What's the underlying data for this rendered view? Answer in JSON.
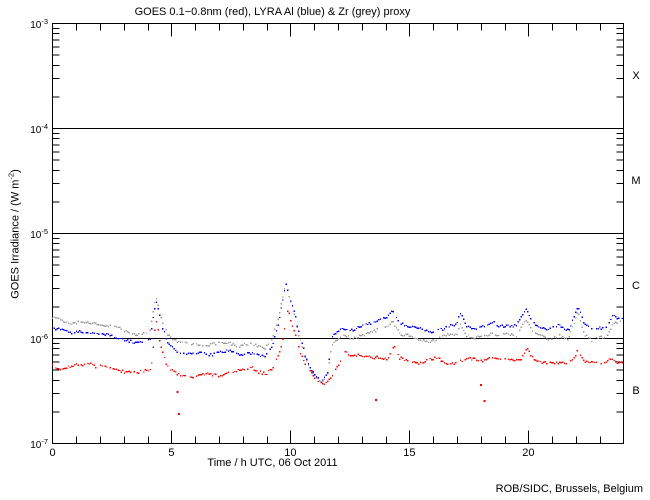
{
  "page": {
    "credit": "ROB/SIDC, Brussels, Belgium"
  },
  "chart_data": {
    "type": "line",
    "title": "GOES 0.1−0.8nm (red), LYRA Al (blue) & Zr (grey) proxy",
    "xlabel": "Time / h UTC, 06 Oct 2011",
    "ylabel": "GOES Irradiance / (W m-2)",
    "ylabel_parts": {
      "pre": "GOES Irradiance / (W m",
      "sup": "-2",
      "post": ")"
    },
    "xlim": [
      0,
      24
    ],
    "ylim": [
      1e-07,
      0.001
    ],
    "x_major_ticks": [
      0,
      5,
      10,
      15,
      20
    ],
    "x_minor_step": 1,
    "y_decade_exponents": [
      -3,
      -4,
      -5,
      -6,
      -7
    ],
    "threshold_lines": [
      0.0001,
      1e-05,
      1e-06
    ],
    "flare_class_labels": [
      {
        "label": "X",
        "band": [
          0.0001,
          0.001
        ]
      },
      {
        "label": "M",
        "band": [
          1e-05,
          0.0001
        ]
      },
      {
        "label": "C",
        "band": [
          1e-06,
          1e-05
        ]
      },
      {
        "label": "B",
        "band": [
          1e-07,
          1e-06
        ]
      }
    ],
    "colors": {
      "goes": "#ff0000",
      "lyra_al": "#0000ff",
      "lyra_zr": "#9a9a9a",
      "axis": "#000000",
      "background": "#ffffff"
    },
    "series": [
      {
        "name": "GOES 0.1-0.8nm",
        "color": "#ff0000",
        "points": [
          [
            0,
            5.5e-07
          ],
          [
            0.3,
            5.2e-07
          ],
          [
            0.8,
            5.4e-07
          ],
          [
            1.3,
            5.6e-07
          ],
          [
            1.6,
            5.9e-07
          ],
          [
            1.8,
            5.4e-07
          ],
          [
            2.1,
            5.6e-07
          ],
          [
            2.4,
            5.1e-07
          ],
          [
            2.8,
            5e-07
          ],
          [
            3.2,
            4.8e-07
          ],
          [
            3.6,
            4.7e-07
          ],
          [
            4.0,
            4.9e-07
          ],
          [
            4.15,
            5.2e-07
          ],
          [
            4.35,
            1.55e-06
          ],
          [
            4.55,
            8.6e-07
          ],
          [
            4.8,
            5.5e-07
          ],
          [
            5.1,
            4.7e-07
          ],
          [
            5.5,
            4.4e-07
          ],
          [
            6.0,
            4.4e-07
          ],
          [
            6.5,
            4.5e-07
          ],
          [
            7.0,
            4.5e-07
          ],
          [
            7.5,
            4.7e-07
          ],
          [
            8.0,
            5e-07
          ],
          [
            8.4,
            5.3e-07
          ],
          [
            8.7,
            4.8e-07
          ],
          [
            9.0,
            4.6e-07
          ],
          [
            9.3,
            5.3e-07
          ],
          [
            9.6,
            8e-07
          ],
          [
            9.9,
            1.9e-06
          ],
          [
            10.15,
            1.2e-06
          ],
          [
            10.4,
            7.4e-07
          ],
          [
            10.7,
            5.3e-07
          ],
          [
            11.0,
            4.3e-07
          ],
          [
            11.4,
            3.7e-07
          ],
          [
            11.7,
            4.2e-07
          ],
          [
            12.0,
            5.4e-07
          ],
          [
            12.3,
            7.4e-07
          ],
          [
            12.6,
            7e-07
          ],
          [
            13.0,
            6.9e-07
          ],
          [
            13.4,
            6.5e-07
          ],
          [
            13.8,
            6.7e-07
          ],
          [
            14.1,
            6.4e-07
          ],
          [
            14.35,
            8.5e-07
          ],
          [
            14.6,
            6.4e-07
          ],
          [
            15.0,
            6.1e-07
          ],
          [
            15.4,
            5.9e-07
          ],
          [
            15.8,
            6.2e-07
          ],
          [
            16.2,
            6.4e-07
          ],
          [
            16.6,
            5.9e-07
          ],
          [
            17.0,
            5.8e-07
          ],
          [
            17.3,
            6.2e-07
          ],
          [
            17.7,
            6.4e-07
          ],
          [
            18.1,
            6.2e-07
          ],
          [
            18.5,
            6.6e-07
          ],
          [
            18.9,
            6.2e-07
          ],
          [
            19.3,
            6.4e-07
          ],
          [
            19.7,
            6.2e-07
          ],
          [
            19.95,
            8.2e-07
          ],
          [
            20.2,
            6.3e-07
          ],
          [
            20.6,
            6e-07
          ],
          [
            21.0,
            5.9e-07
          ],
          [
            21.4,
            5.7e-07
          ],
          [
            21.8,
            6e-07
          ],
          [
            22.1,
            7.8e-07
          ],
          [
            22.4,
            6e-07
          ],
          [
            22.8,
            5.7e-07
          ],
          [
            23.2,
            5.9e-07
          ],
          [
            23.5,
            6.6e-07
          ],
          [
            23.8,
            5.8e-07
          ],
          [
            24,
            6e-07
          ]
        ]
      },
      {
        "name": "LYRA Al proxy",
        "color": "#0000ff",
        "points": [
          [
            0,
            1.27e-06
          ],
          [
            0.4,
            1.22e-06
          ],
          [
            0.8,
            1.13e-06
          ],
          [
            1.1,
            1.18e-06
          ],
          [
            1.4,
            1.12e-06
          ],
          [
            1.7,
            1.15e-06
          ],
          [
            2.0,
            1.08e-06
          ],
          [
            2.3,
            1.1e-06
          ],
          [
            2.7,
            1.02e-06
          ],
          [
            3.1,
            9.5e-07
          ],
          [
            3.5,
            9e-07
          ],
          [
            3.9,
            9.2e-07
          ],
          [
            4.1,
            9.8e-07
          ],
          [
            4.35,
            2.3e-06
          ],
          [
            4.6,
            1.3e-06
          ],
          [
            4.85,
            9e-07
          ],
          [
            5.1,
            8e-07
          ],
          [
            5.4,
            7.2e-07
          ],
          [
            5.8,
            7e-07
          ],
          [
            6.2,
            7.2e-07
          ],
          [
            6.6,
            7.1e-07
          ],
          [
            7.0,
            7.3e-07
          ],
          [
            7.4,
            7.6e-07
          ],
          [
            7.8,
            7e-07
          ],
          [
            8.2,
            7.3e-07
          ],
          [
            8.6,
            7e-07
          ],
          [
            8.9,
            6.6e-07
          ],
          [
            9.2,
            8e-07
          ],
          [
            9.5,
            1.4e-06
          ],
          [
            9.8,
            3.3e-06
          ],
          [
            10.1,
            2e-06
          ],
          [
            10.4,
            1.05e-06
          ],
          [
            10.7,
            6.2e-07
          ],
          [
            11.0,
            4.6e-07
          ],
          [
            11.3,
            3.9e-07
          ],
          [
            11.55,
            4.4e-07
          ],
          [
            11.75,
            1.05e-06
          ],
          [
            12.0,
            1.2e-06
          ],
          [
            12.3,
            1.25e-06
          ],
          [
            12.6,
            1.18e-06
          ],
          [
            12.9,
            1.28e-06
          ],
          [
            13.2,
            1.38e-06
          ],
          [
            13.6,
            1.45e-06
          ],
          [
            14.0,
            1.55e-06
          ],
          [
            14.3,
            1.85e-06
          ],
          [
            14.6,
            1.42e-06
          ],
          [
            15.0,
            1.33e-06
          ],
          [
            15.4,
            1.25e-06
          ],
          [
            15.8,
            1.15e-06
          ],
          [
            16.2,
            1.2e-06
          ],
          [
            16.6,
            1.3e-06
          ],
          [
            17.0,
            1.35e-06
          ],
          [
            17.15,
            1.75e-06
          ],
          [
            17.4,
            1.33e-06
          ],
          [
            17.8,
            1.25e-06
          ],
          [
            18.2,
            1.3e-06
          ],
          [
            18.5,
            1.42e-06
          ],
          [
            18.8,
            1.3e-06
          ],
          [
            19.1,
            1.35e-06
          ],
          [
            19.5,
            1.3e-06
          ],
          [
            19.9,
            1.9e-06
          ],
          [
            20.2,
            1.42e-06
          ],
          [
            20.5,
            1.3e-06
          ],
          [
            20.9,
            1.2e-06
          ],
          [
            21.3,
            1.33e-06
          ],
          [
            21.7,
            1.22e-06
          ],
          [
            22.1,
            2.05e-06
          ],
          [
            22.35,
            1.35e-06
          ],
          [
            22.7,
            1.2e-06
          ],
          [
            23.0,
            1.28e-06
          ],
          [
            23.3,
            1.25e-06
          ],
          [
            23.55,
            1.65e-06
          ],
          [
            23.8,
            1.5e-06
          ],
          [
            24,
            1.5e-06
          ]
        ]
      },
      {
        "name": "LYRA Zr proxy",
        "color": "#9a9a9a",
        "points": [
          [
            0,
            1.55e-06
          ],
          [
            0.4,
            1.48e-06
          ],
          [
            0.8,
            1.4e-06
          ],
          [
            1.1,
            1.44e-06
          ],
          [
            1.4,
            1.38e-06
          ],
          [
            1.7,
            1.4e-06
          ],
          [
            2.0,
            1.33e-06
          ],
          [
            2.3,
            1.35e-06
          ],
          [
            2.7,
            1.25e-06
          ],
          [
            3.1,
            1.16e-06
          ],
          [
            3.5,
            1.1e-06
          ],
          [
            3.9,
            1.12e-06
          ],
          [
            4.1,
            1.18e-06
          ],
          [
            4.35,
            2.45e-06
          ],
          [
            4.6,
            1.5e-06
          ],
          [
            4.85,
            1.1e-06
          ],
          [
            5.1,
            9.8e-07
          ],
          [
            5.4,
            9e-07
          ],
          [
            5.8,
            8.7e-07
          ],
          [
            6.2,
            8.9e-07
          ],
          [
            6.6,
            8.7e-07
          ],
          [
            7.0,
            8.9e-07
          ],
          [
            7.4,
            9.2e-07
          ],
          [
            7.8,
            8.5e-07
          ],
          [
            8.2,
            8.8e-07
          ],
          [
            8.6,
            8.5e-07
          ],
          [
            8.9,
            8e-07
          ],
          [
            9.2,
            9.6e-07
          ],
          [
            9.5,
            1.55e-06
          ],
          [
            9.8,
            3.3e-06
          ],
          [
            10.1,
            2e-06
          ],
          [
            10.4,
            1e-06
          ],
          [
            10.7,
            5.9e-07
          ],
          [
            11.0,
            4.5e-07
          ],
          [
            11.3,
            3.8e-07
          ],
          [
            11.55,
            4.3e-07
          ],
          [
            11.75,
            9e-07
          ],
          [
            12.0,
            1e-06
          ],
          [
            12.3,
            1.05e-06
          ],
          [
            12.6,
            9.8e-07
          ],
          [
            12.9,
            1.06e-06
          ],
          [
            13.2,
            1.12e-06
          ],
          [
            13.6,
            1.18e-06
          ],
          [
            14.0,
            1.25e-06
          ],
          [
            14.3,
            1.48e-06
          ],
          [
            14.6,
            1.12e-06
          ],
          [
            15.0,
            1.05e-06
          ],
          [
            15.4,
            9.8e-07
          ],
          [
            15.8,
            9.3e-07
          ],
          [
            16.2,
            1e-06
          ],
          [
            16.6,
            1.08e-06
          ],
          [
            17.0,
            1.1e-06
          ],
          [
            17.15,
            1.42e-06
          ],
          [
            17.4,
            1.08e-06
          ],
          [
            17.8,
            1e-06
          ],
          [
            18.2,
            1.05e-06
          ],
          [
            18.5,
            1.15e-06
          ],
          [
            18.8,
            1.05e-06
          ],
          [
            19.1,
            1.1e-06
          ],
          [
            19.5,
            1.05e-06
          ],
          [
            19.9,
            1.55e-06
          ],
          [
            20.2,
            1.15e-06
          ],
          [
            20.5,
            1.05e-06
          ],
          [
            20.9,
            9.6e-07
          ],
          [
            21.3,
            1.08e-06
          ],
          [
            21.7,
            9.8e-07
          ],
          [
            22.1,
            1.77e-06
          ],
          [
            22.35,
            1.1e-06
          ],
          [
            22.7,
            9.6e-07
          ],
          [
            23.0,
            1.04e-06
          ],
          [
            23.3,
            1e-06
          ],
          [
            23.55,
            1.35e-06
          ],
          [
            23.8,
            1.42e-06
          ],
          [
            24,
            1.45e-06
          ]
        ]
      }
    ],
    "dropout_points": {
      "series": "GOES 0.1-0.8nm",
      "color": "#ff0000",
      "points": [
        [
          5.25,
          3.1e-07
        ],
        [
          5.32,
          1.9e-07
        ],
        [
          13.6,
          2.6e-07
        ],
        [
          18.0,
          3.6e-07
        ],
        [
          18.15,
          2.55e-07
        ]
      ]
    }
  }
}
